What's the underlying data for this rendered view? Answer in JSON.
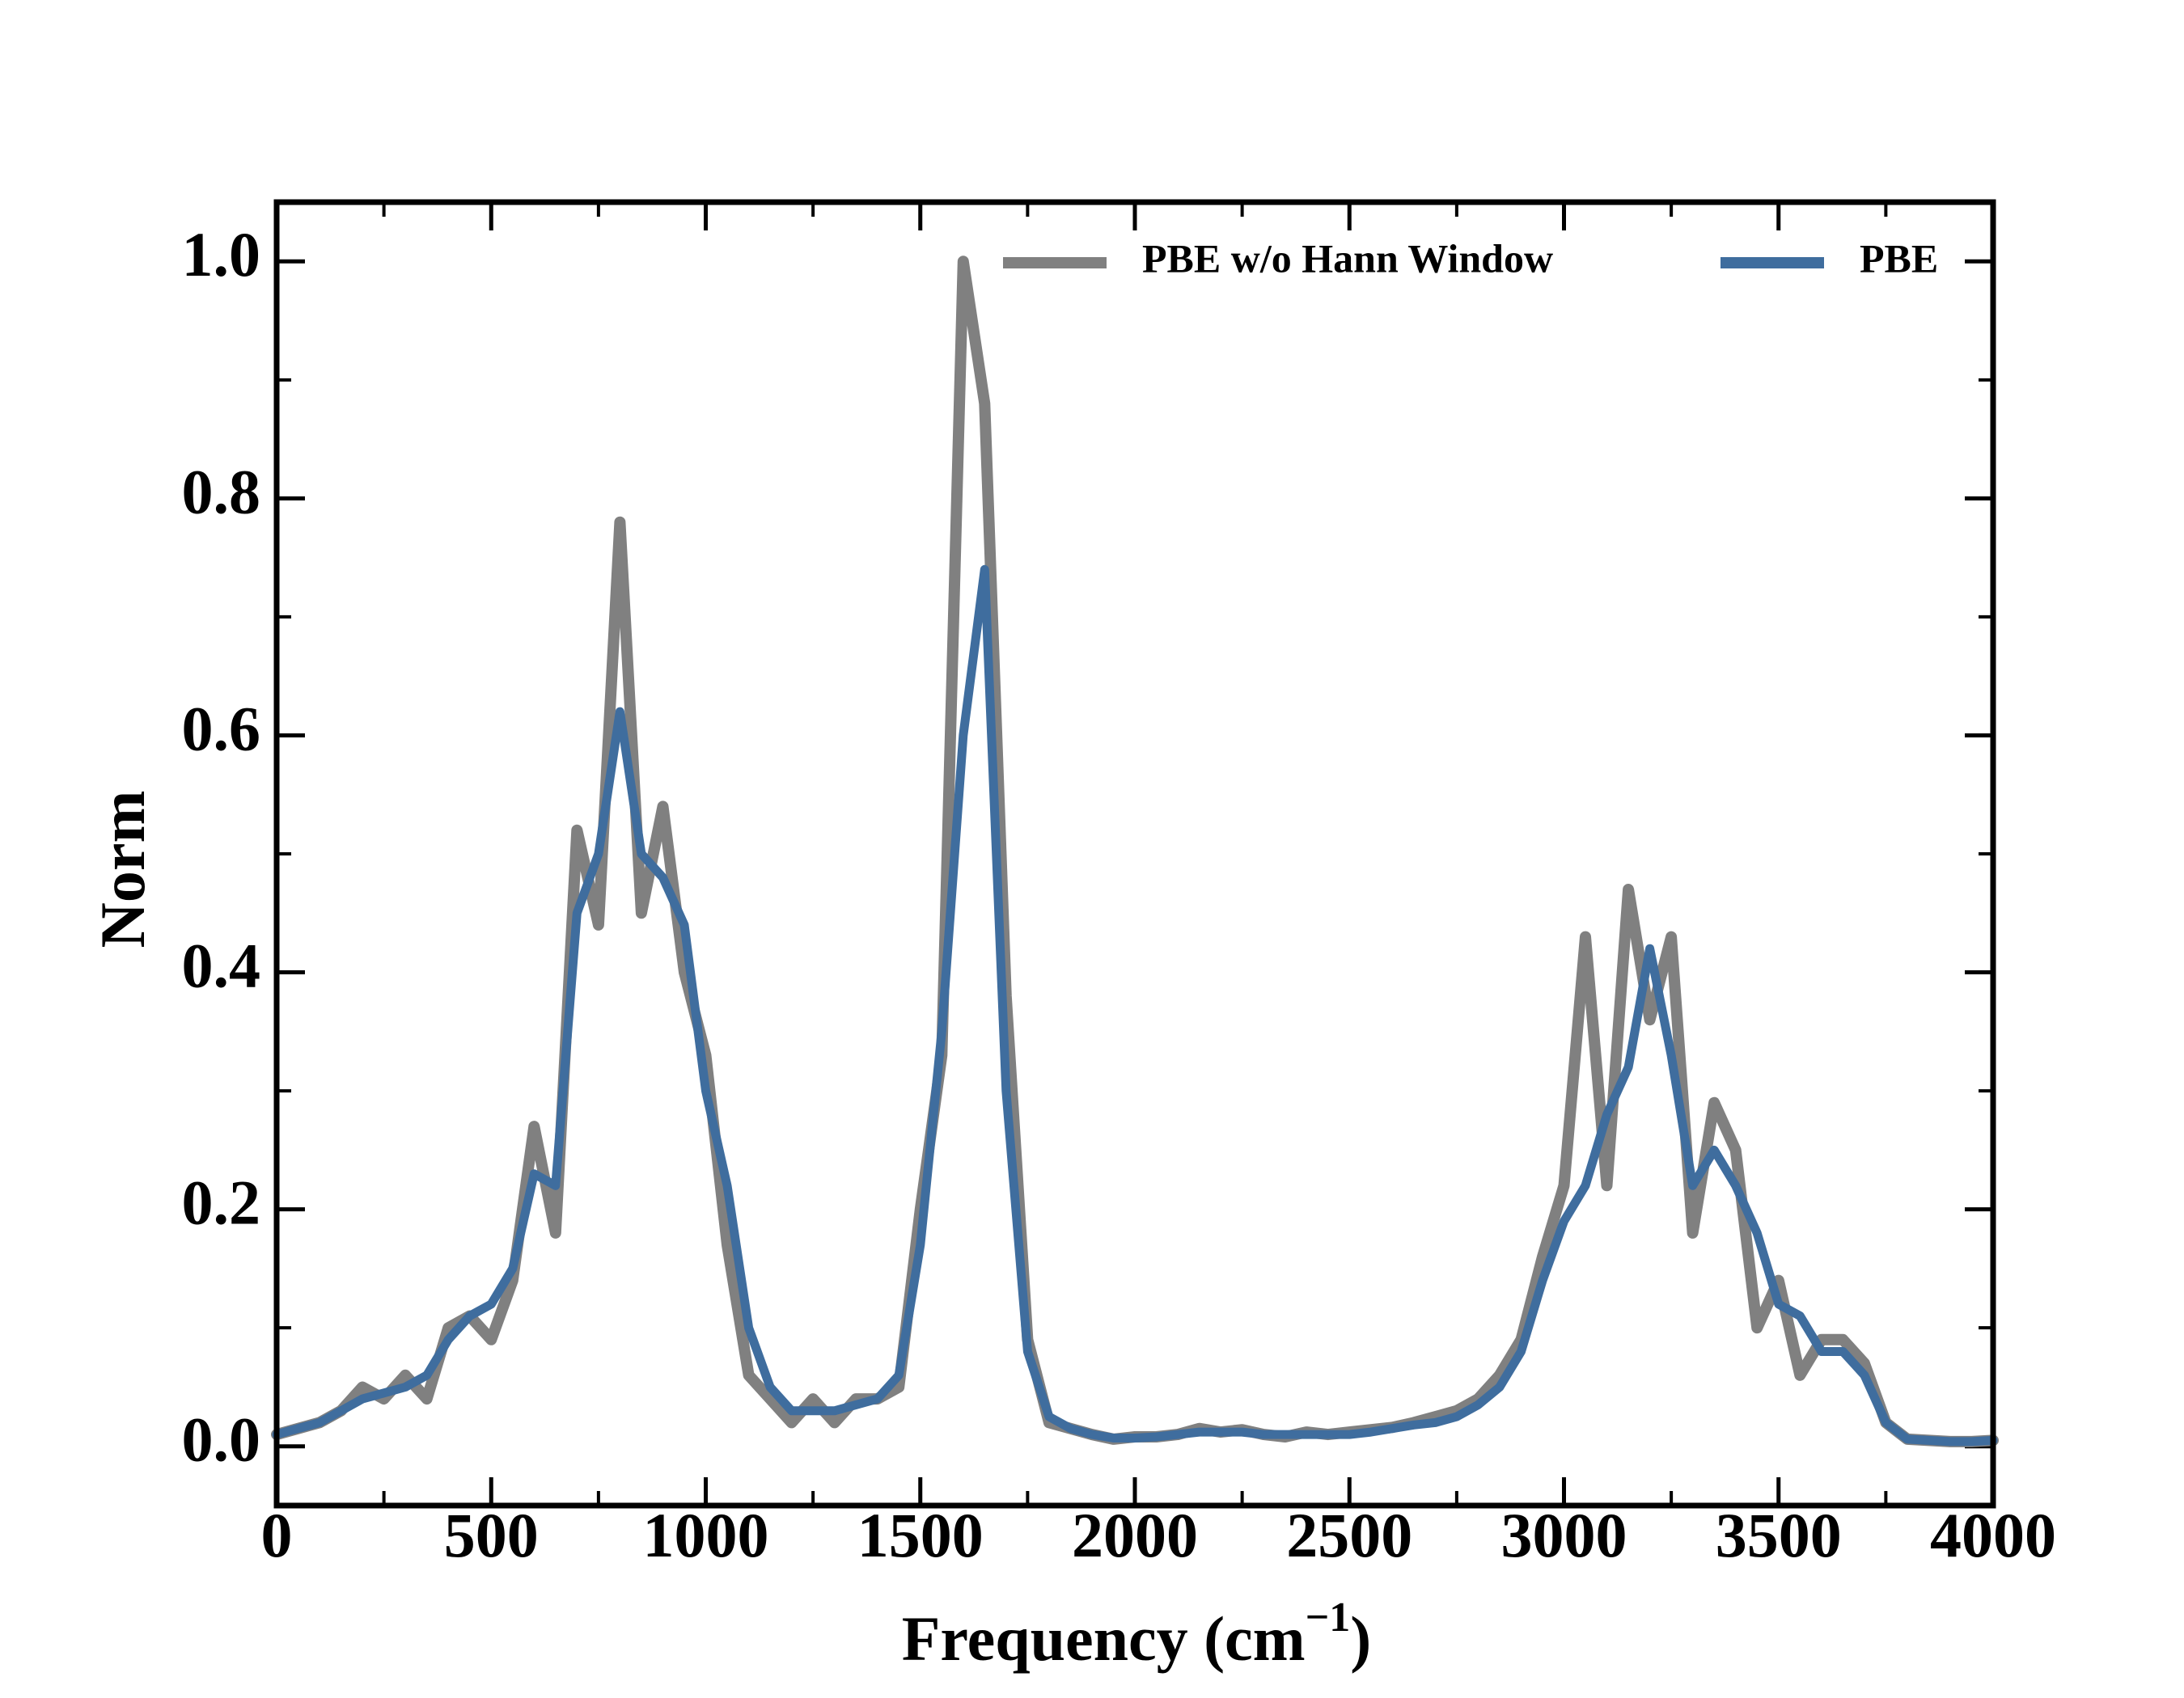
{
  "chart_data": {
    "type": "line",
    "xlabel": [
      "Frequency (cm",
      "−1",
      ")"
    ],
    "ylabel": "Norm",
    "x": [
      0,
      50,
      100,
      150,
      200,
      250,
      300,
      350,
      400,
      450,
      500,
      550,
      600,
      650,
      700,
      750,
      800,
      850,
      900,
      950,
      1000,
      1050,
      1100,
      1150,
      1200,
      1250,
      1300,
      1350,
      1400,
      1450,
      1500,
      1550,
      1600,
      1650,
      1700,
      1750,
      1800,
      1850,
      1900,
      1950,
      2000,
      2050,
      2100,
      2150,
      2200,
      2250,
      2300,
      2350,
      2400,
      2450,
      2500,
      2550,
      2600,
      2650,
      2700,
      2750,
      2800,
      2850,
      2900,
      2950,
      3000,
      3050,
      3100,
      3150,
      3200,
      3250,
      3300,
      3350,
      3400,
      3450,
      3500,
      3550,
      3600,
      3650,
      3700,
      3750,
      3800,
      3850,
      3900,
      3950,
      4000
    ],
    "series": [
      {
        "name": "PBE w/o Hann Window",
        "color": "#808080",
        "values": [
          0.01,
          0.015,
          0.02,
          0.03,
          0.05,
          0.04,
          0.06,
          0.04,
          0.1,
          0.11,
          0.09,
          0.14,
          0.27,
          0.18,
          0.52,
          0.44,
          0.78,
          0.45,
          0.54,
          0.4,
          0.33,
          0.17,
          0.06,
          0.04,
          0.02,
          0.04,
          0.02,
          0.04,
          0.04,
          0.05,
          0.2,
          0.33,
          1.0,
          0.88,
          0.38,
          0.09,
          0.02,
          0.015,
          0.01,
          0.006,
          0.008,
          0.008,
          0.01,
          0.015,
          0.012,
          0.014,
          0.01,
          0.008,
          0.012,
          0.01,
          0.012,
          0.014,
          0.016,
          0.02,
          0.025,
          0.03,
          0.04,
          0.06,
          0.09,
          0.16,
          0.22,
          0.43,
          0.22,
          0.47,
          0.36,
          0.43,
          0.18,
          0.29,
          0.25,
          0.1,
          0.14,
          0.06,
          0.09,
          0.09,
          0.07,
          0.02,
          0.006,
          0.005,
          0.004,
          0.004,
          0.005
        ]
      },
      {
        "name": "PBE",
        "color": "#3f6d9e",
        "values": [
          0.01,
          0.015,
          0.02,
          0.03,
          0.04,
          0.045,
          0.05,
          0.06,
          0.09,
          0.11,
          0.12,
          0.15,
          0.23,
          0.22,
          0.45,
          0.5,
          0.62,
          0.5,
          0.48,
          0.44,
          0.3,
          0.22,
          0.1,
          0.05,
          0.03,
          0.03,
          0.03,
          0.035,
          0.04,
          0.06,
          0.17,
          0.35,
          0.6,
          0.74,
          0.3,
          0.08,
          0.025,
          0.015,
          0.01,
          0.007,
          0.007,
          0.008,
          0.01,
          0.012,
          0.012,
          0.012,
          0.01,
          0.01,
          0.01,
          0.01,
          0.01,
          0.012,
          0.015,
          0.018,
          0.02,
          0.025,
          0.035,
          0.05,
          0.08,
          0.14,
          0.19,
          0.22,
          0.28,
          0.32,
          0.42,
          0.33,
          0.22,
          0.25,
          0.22,
          0.18,
          0.12,
          0.11,
          0.08,
          0.08,
          0.06,
          0.02,
          0.006,
          0.005,
          0.004,
          0.004,
          0.005
        ]
      }
    ],
    "xlim": [
      0,
      4000
    ],
    "xticks": [
      0,
      500,
      1000,
      1500,
      2000,
      2500,
      3000,
      3500,
      4000
    ],
    "xticks_minor": [
      250,
      750,
      1250,
      1750,
      2250,
      2750,
      3250,
      3750
    ],
    "ylim": [
      -0.05,
      1.05
    ],
    "yticks": [
      {
        "value": 0,
        "label": "0.0"
      },
      {
        "value": 0.2,
        "label": "0.2"
      },
      {
        "value": 0.4,
        "label": "0.4"
      },
      {
        "value": 0.6,
        "label": "0.6"
      },
      {
        "value": 0.8,
        "label": "0.8"
      },
      {
        "value": 1,
        "label": "1.0"
      }
    ],
    "yticks_minor": [
      0.1,
      0.3,
      0.5,
      0.7,
      0.9
    ],
    "legend": "upper right"
  }
}
